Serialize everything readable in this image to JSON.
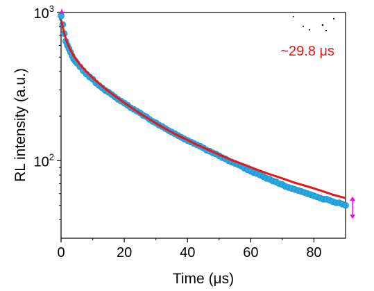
{
  "chart_data": {
    "type": "scatter",
    "xlabel": "Time (μs)",
    "ylabel": "RL intensity (a.u.)",
    "xlim": [
      0,
      90
    ],
    "ylim": [
      30,
      1000
    ],
    "y_scale": "log",
    "x_ticks": [
      {
        "value": 0,
        "label": "0"
      },
      {
        "value": 20,
        "label": "20"
      },
      {
        "value": 40,
        "label": "40"
      },
      {
        "value": 60,
        "label": "60"
      },
      {
        "value": 80,
        "label": "80"
      }
    ],
    "y_ticks": [
      {
        "value": 100,
        "base": "10",
        "exp": "2"
      },
      {
        "value": 1000,
        "base": "10",
        "exp": "3"
      }
    ],
    "annotation": "~29.8 μs",
    "grid": false,
    "series": [
      {
        "kind": "scatter",
        "color": "#29a8e0",
        "x": [
          0,
          0.5,
          1,
          1.5,
          2,
          2.5,
          3,
          3.5,
          4,
          4.5,
          5,
          6,
          7,
          8,
          9,
          10,
          11,
          12,
          13,
          14,
          15,
          16,
          17,
          18,
          19,
          20,
          21,
          22,
          23,
          24,
          25,
          26,
          27,
          28,
          29,
          30,
          31,
          32,
          33,
          34,
          35,
          36,
          37,
          38,
          39,
          40,
          41,
          42,
          43,
          44,
          45,
          46,
          47,
          48,
          49,
          50,
          51,
          52,
          53,
          54,
          55,
          56,
          57,
          58,
          59,
          60,
          61,
          62,
          63,
          64,
          65,
          66,
          67,
          68,
          69,
          70,
          71,
          72,
          73,
          74,
          75,
          76,
          77,
          78,
          79,
          80,
          81,
          82,
          83,
          84,
          85,
          86,
          87,
          88,
          89,
          90
        ],
        "y": [
          950,
          830,
          720,
          640,
          600,
          570,
          540,
          510,
          485,
          470,
          455,
          430,
          405,
          385,
          368,
          355,
          335,
          322,
          310,
          298,
          290,
          280,
          270,
          260,
          252,
          245,
          237,
          228,
          222,
          216,
          210,
          202,
          198,
          190,
          184,
          180,
          174,
          170,
          165,
          160,
          156,
          152,
          148,
          144,
          140,
          137,
          134,
          131,
          128,
          125,
          122,
          118,
          116,
          113,
          111,
          108,
          105,
          103,
          100,
          98,
          96,
          94,
          92,
          89,
          87,
          85,
          83,
          82,
          80,
          78,
          76,
          75,
          73,
          72,
          70,
          69,
          67,
          66,
          65,
          64,
          63,
          62,
          61,
          60,
          59,
          58,
          57,
          56,
          55,
          55,
          54,
          53,
          52,
          52,
          51,
          50
        ]
      },
      {
        "kind": "line",
        "name": "fit",
        "color": "#e8151b",
        "x": [
          0,
          1,
          2,
          3,
          4,
          5,
          6,
          8,
          10,
          12,
          14,
          16,
          18,
          20,
          22,
          25,
          28,
          31,
          34,
          37,
          40,
          43,
          46,
          50,
          54,
          58,
          62,
          66,
          70,
          74,
          78,
          82,
          86,
          90
        ],
        "y": [
          890,
          720,
          620,
          555,
          510,
          475,
          445,
          400,
          363,
          332,
          306,
          284,
          264,
          246,
          230,
          208,
          190,
          174,
          160,
          148,
          138,
          128,
          120,
          110,
          101,
          94,
          87,
          81,
          76,
          71,
          67,
          63,
          59,
          56
        ]
      }
    ]
  },
  "colors": {
    "marker": "#29a8e0",
    "fit": "#e8151b",
    "marker_edge": "#ff00ff"
  }
}
